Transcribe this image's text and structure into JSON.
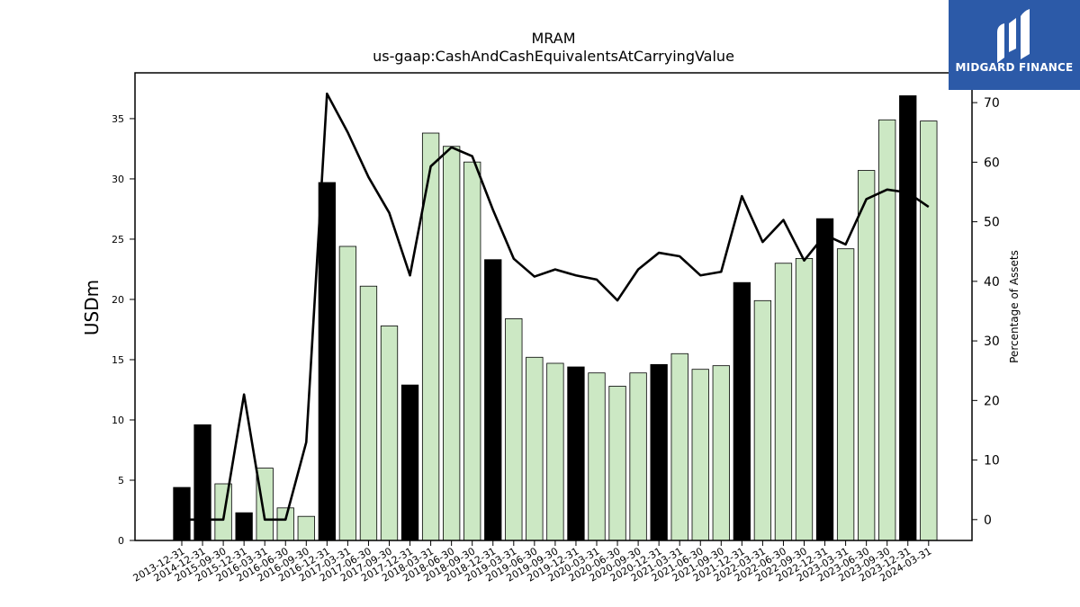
{
  "chart_data": {
    "type": "bar",
    "title": "MRAM",
    "subtitle": "us-gaap:CashAndCashEquivalentsAtCarryingValue",
    "ylabel": "USDm",
    "y2label": "Percentage of Assets",
    "ylim": [
      0,
      38.8
    ],
    "y2lim": [
      -3.5,
      75.0
    ],
    "yticks": [
      0,
      5,
      10,
      15,
      20,
      25,
      30,
      35
    ],
    "y2ticks": [
      0,
      10,
      20,
      30,
      40,
      50,
      60,
      70
    ],
    "categories": [
      "2013-12-31",
      "2014-12-31",
      "2015-09-30",
      "2015-12-31",
      "2016-03-31",
      "2016-06-30",
      "2016-09-30",
      "2016-12-31",
      "2017-03-31",
      "2017-06-30",
      "2017-09-30",
      "2017-12-31",
      "2018-03-31",
      "2018-06-30",
      "2018-09-30",
      "2018-12-31",
      "2019-03-31",
      "2019-06-30",
      "2019-09-30",
      "2019-12-31",
      "2020-03-31",
      "2020-06-30",
      "2020-09-30",
      "2020-12-31",
      "2021-03-31",
      "2021-06-30",
      "2021-09-30",
      "2021-12-31",
      "2022-03-31",
      "2022-06-30",
      "2022-09-30",
      "2022-12-31",
      "2023-03-31",
      "2023-06-30",
      "2023-09-30",
      "2023-12-31",
      "2024-03-31"
    ],
    "series": [
      {
        "type": "bar",
        "axis": "left",
        "values": [
          4.4,
          9.6,
          4.7,
          2.3,
          6.0,
          2.7,
          2.0,
          29.7,
          24.4,
          21.1,
          17.8,
          12.9,
          33.8,
          32.7,
          31.4,
          23.3,
          18.4,
          15.2,
          14.7,
          14.4,
          13.9,
          12.8,
          13.9,
          14.6,
          15.5,
          14.2,
          14.5,
          21.4,
          19.9,
          23.0,
          23.4,
          26.7,
          24.2,
          30.7,
          34.9,
          36.9,
          34.8
        ],
        "highlight": [
          true,
          true,
          false,
          true,
          false,
          false,
          false,
          true,
          false,
          false,
          false,
          true,
          false,
          false,
          false,
          true,
          false,
          false,
          false,
          true,
          false,
          false,
          false,
          true,
          false,
          false,
          false,
          true,
          false,
          false,
          false,
          true,
          false,
          false,
          false,
          true,
          false
        ]
      },
      {
        "type": "line",
        "axis": "right",
        "values": [
          0.0,
          0.0,
          0.0,
          21.0,
          0.0,
          0.0,
          13.0,
          71.5,
          65.0,
          57.5,
          51.5,
          41.0,
          59.3,
          62.5,
          61.0,
          52.0,
          43.8,
          40.8,
          42.0,
          41.0,
          40.3,
          36.8,
          42.0,
          44.8,
          44.2,
          41.0,
          41.6,
          54.3,
          46.6,
          50.3,
          43.5,
          47.8,
          46.2,
          53.8,
          55.4,
          54.9,
          52.5
        ]
      }
    ],
    "colors": {
      "bar_highlight": "#000000",
      "bar_normal": "#cce8c4",
      "line": "#000000"
    },
    "grid": false
  },
  "logo": {
    "text": "MIDGARD FINANCE"
  }
}
